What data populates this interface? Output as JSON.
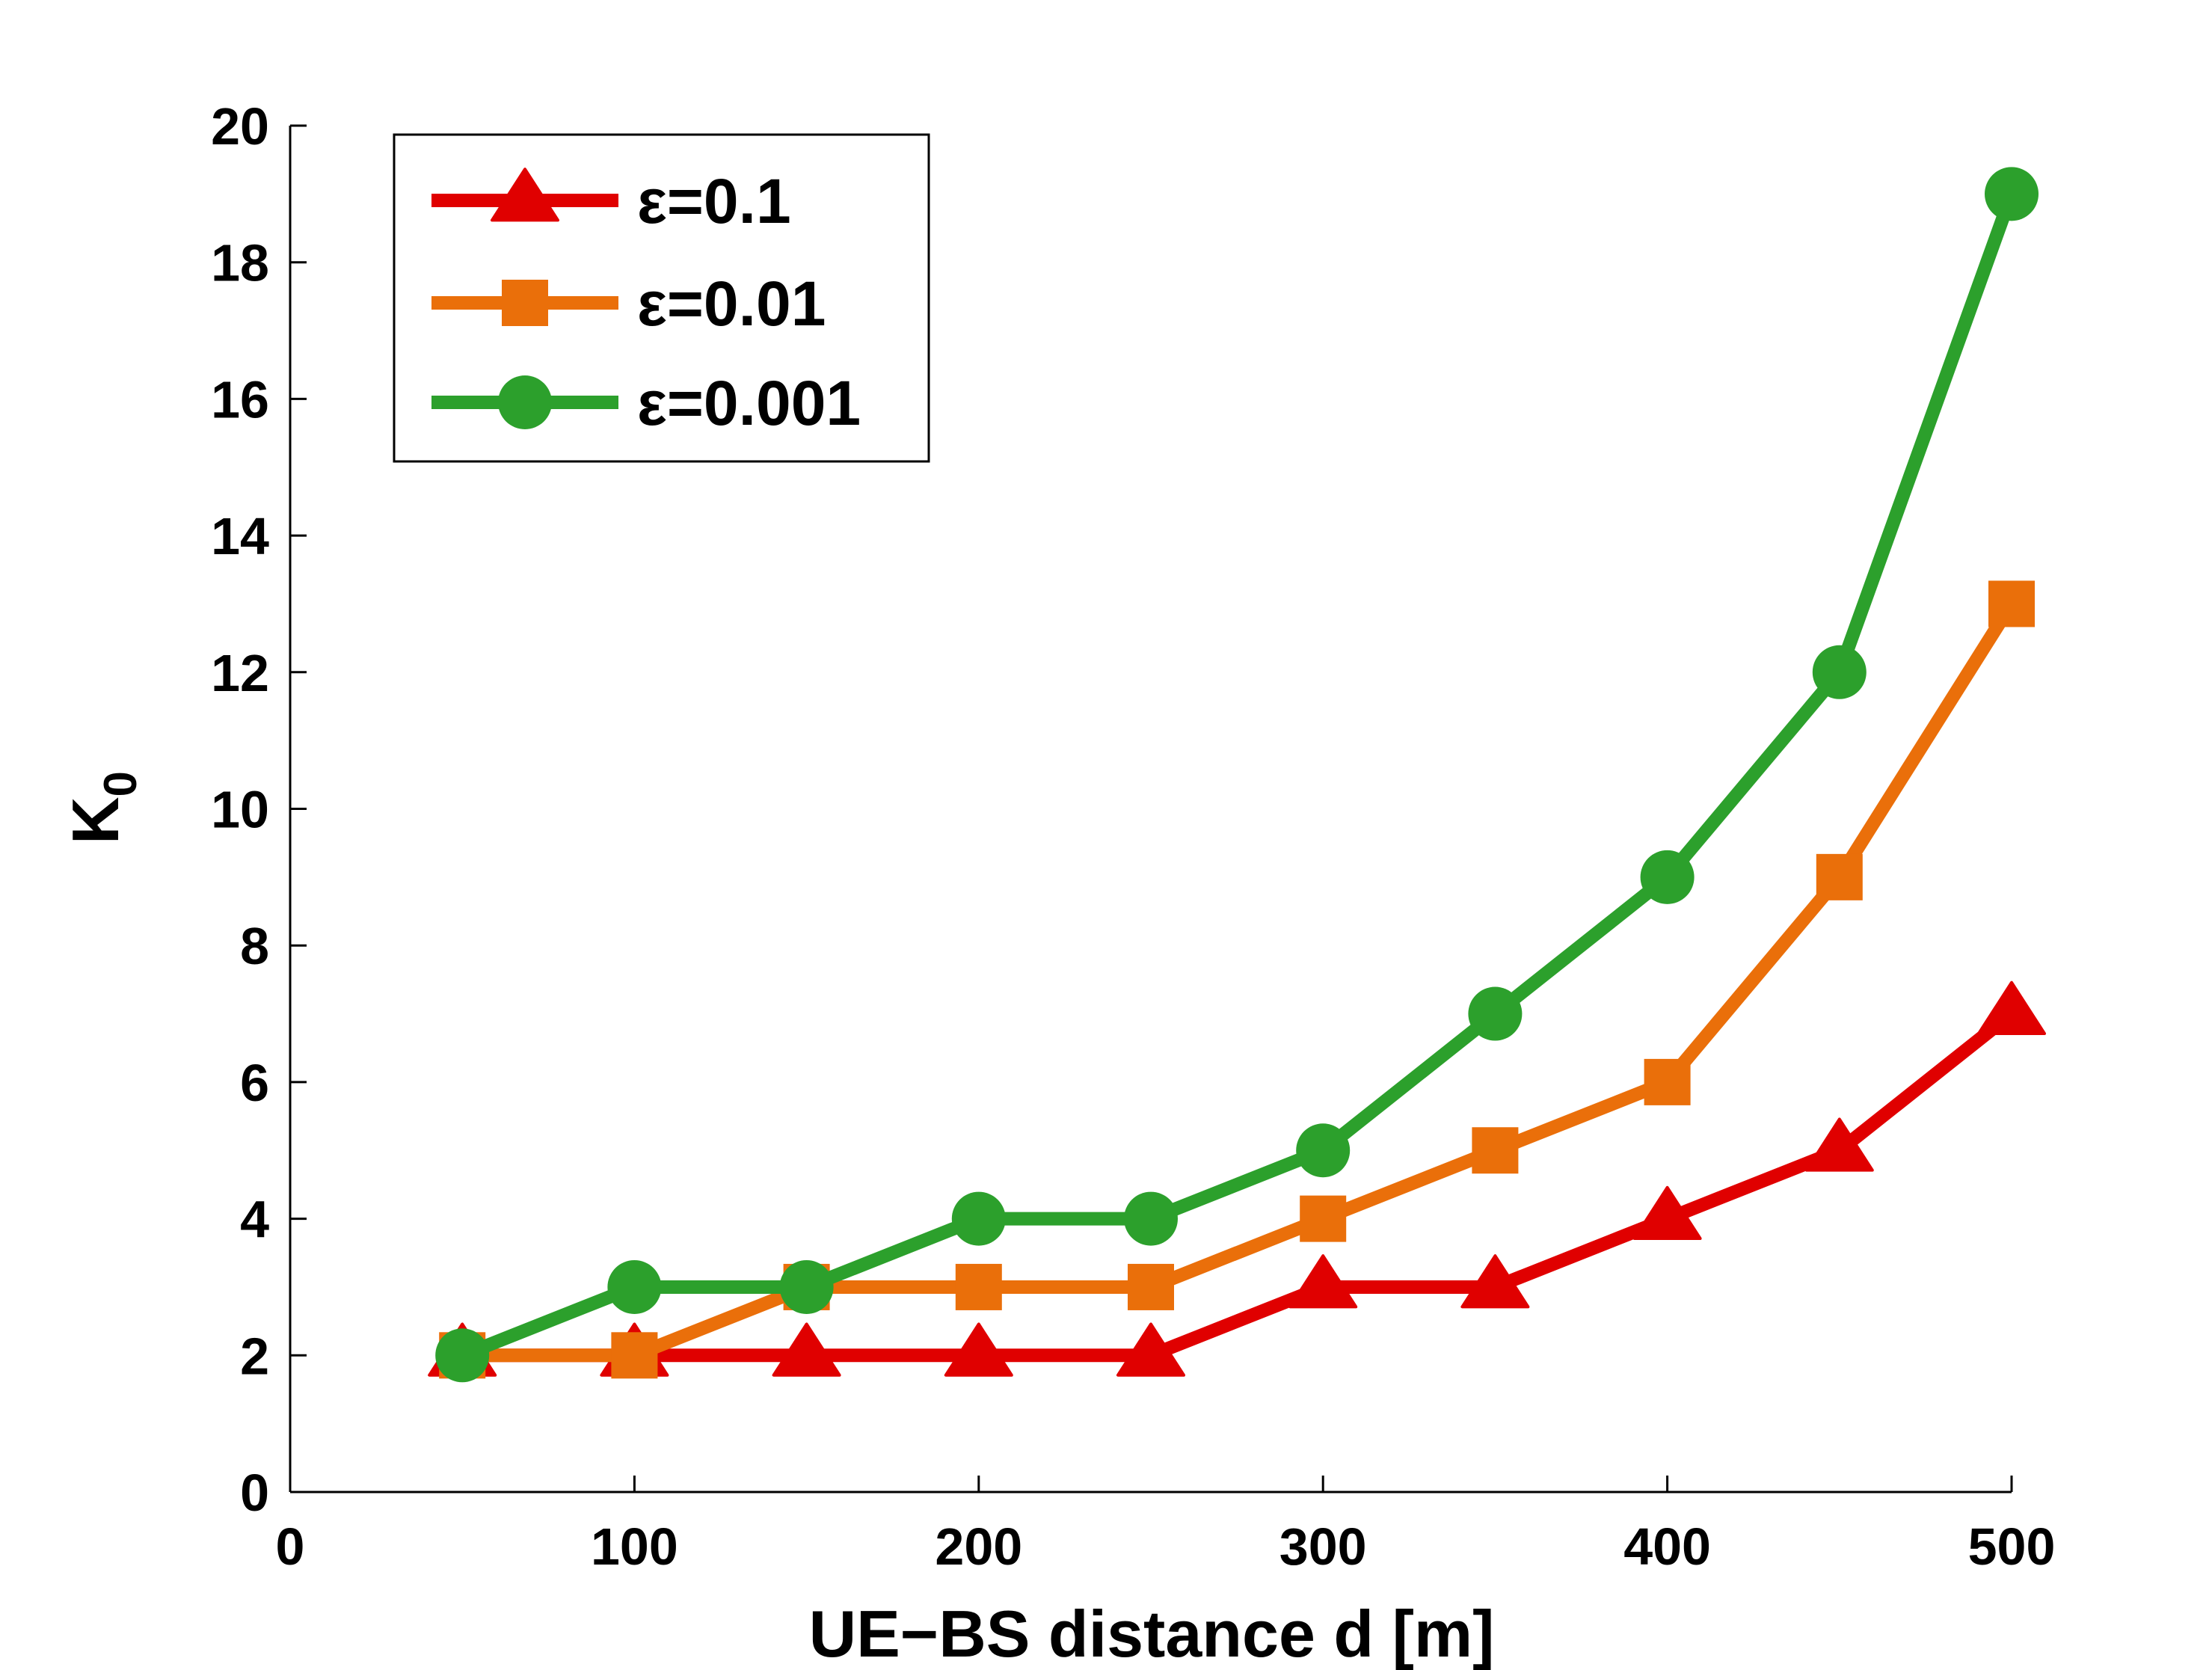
{
  "chart_data": {
    "type": "line",
    "title": "",
    "xlabel": "UE−BS distance d [m]",
    "ylabel": "K",
    "ylabel_subscript": "0",
    "xlim": [
      0,
      500
    ],
    "ylim": [
      0,
      20
    ],
    "xticks": [
      0,
      100,
      200,
      300,
      400,
      500
    ],
    "yticks": [
      0,
      2,
      4,
      6,
      8,
      10,
      12,
      14,
      16,
      18,
      20
    ],
    "grid": false,
    "legend_position": "top-left",
    "x": [
      50,
      100,
      150,
      200,
      250,
      300,
      350,
      400,
      450,
      500
    ],
    "series": [
      {
        "name": "ε=0.1",
        "color": "#e00000",
        "marker": "triangle",
        "values": [
          2,
          2,
          2,
          2,
          2,
          3,
          3,
          4,
          5,
          7
        ]
      },
      {
        "name": "ε=0.01",
        "color": "#ea6f0a",
        "marker": "square",
        "values": [
          2,
          2,
          3,
          3,
          3,
          4,
          5,
          6,
          9,
          13
        ]
      },
      {
        "name": "ε=0.001",
        "color": "#2ca02c",
        "marker": "circle",
        "values": [
          2,
          3,
          3,
          4,
          4,
          5,
          7,
          9,
          12,
          19
        ]
      }
    ]
  }
}
